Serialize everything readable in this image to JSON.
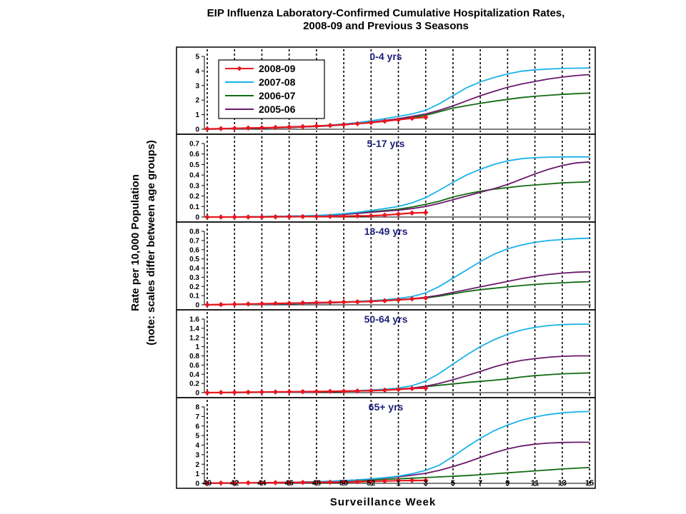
{
  "chart_data": {
    "type": "line",
    "title": "EIP Influenza Laboratory-Confirmed Cumulative Hospitalization Rates,",
    "subtitle": "2008-09 and Previous 3 Seasons",
    "xlabel": "Surveillance Week",
    "ylabel": "Rate per 10,000 Population",
    "ylabel_note": "(note: scales differ between age groups)",
    "x_tick_labels": [
      "40",
      "42",
      "44",
      "46",
      "48",
      "50",
      "52",
      "1",
      "3",
      "5",
      "7",
      "9",
      "11",
      "13",
      "15"
    ],
    "weeks": [
      "40",
      "41",
      "42",
      "43",
      "44",
      "45",
      "46",
      "47",
      "48",
      "49",
      "50",
      "51",
      "52",
      "1",
      "2",
      "3",
      "4",
      "5",
      "6",
      "7",
      "8",
      "9",
      "10",
      "11",
      "12",
      "13",
      "14",
      "15",
      "16"
    ],
    "legend": {
      "entries": [
        "2008-09",
        "2007-08",
        "2006-07",
        "2005-06"
      ],
      "placement": "top-left of first panel"
    },
    "series_colors": {
      "2008-09": "#e8171f",
      "2007-08": "#1ab2e8",
      "2006-07": "#126b12",
      "2005-06": "#6b1a6b"
    },
    "grid": "dotted vertical lines at every other week",
    "panels": [
      {
        "name": "0-4 yrs",
        "ylim": [
          0,
          5
        ],
        "yticks": [
          "0",
          "1",
          "2",
          "3",
          "4",
          "5"
        ],
        "series": [
          {
            "name": "2008-09",
            "values": [
              0.02,
              0.04,
              0.06,
              0.08,
              0.1,
              0.12,
              0.15,
              0.18,
              0.22,
              0.26,
              0.32,
              0.38,
              0.45,
              0.55,
              0.65,
              0.75,
              0.82
            ]
          },
          {
            "name": "2007-08",
            "values": [
              0.0,
              0.02,
              0.04,
              0.06,
              0.08,
              0.1,
              0.13,
              0.17,
              0.22,
              0.28,
              0.36,
              0.45,
              0.58,
              0.72,
              0.88,
              1.05,
              1.3,
              1.75,
              2.3,
              2.85,
              3.25,
              3.55,
              3.8,
              3.98,
              4.08,
              4.13,
              4.17,
              4.19,
              4.2
            ]
          },
          {
            "name": "2006-07",
            "values": [
              0.0,
              0.02,
              0.04,
              0.06,
              0.08,
              0.1,
              0.12,
              0.15,
              0.19,
              0.24,
              0.3,
              0.38,
              0.48,
              0.58,
              0.68,
              0.8,
              0.95,
              1.2,
              1.45,
              1.62,
              1.78,
              1.92,
              2.05,
              2.17,
              2.26,
              2.33,
              2.39,
              2.44,
              2.48
            ]
          },
          {
            "name": "2005-06",
            "values": [
              0.0,
              0.02,
              0.04,
              0.06,
              0.08,
              0.1,
              0.12,
              0.15,
              0.19,
              0.24,
              0.3,
              0.38,
              0.48,
              0.6,
              0.72,
              0.88,
              1.05,
              1.3,
              1.6,
              1.95,
              2.3,
              2.6,
              2.88,
              3.1,
              3.28,
              3.45,
              3.58,
              3.68,
              3.75
            ]
          }
        ]
      },
      {
        "name": "5-17 yrs",
        "ylim": [
          0,
          0.7
        ],
        "yticks": [
          "0",
          "0.1",
          "0.2",
          "0.3",
          "0.4",
          "0.5",
          "0.6",
          "0.7"
        ],
        "series": [
          {
            "name": "2008-09",
            "values": [
              0.0,
              0.0,
              0.0,
              0.0,
              0.0,
              0.002,
              0.003,
              0.004,
              0.005,
              0.006,
              0.008,
              0.01,
              0.012,
              0.018,
              0.028,
              0.038,
              0.042
            ]
          },
          {
            "name": "2007-08",
            "values": [
              0.0,
              0.0,
              0.0,
              0.002,
              0.004,
              0.006,
              0.008,
              0.011,
              0.015,
              0.022,
              0.032,
              0.045,
              0.062,
              0.08,
              0.1,
              0.135,
              0.185,
              0.255,
              0.33,
              0.4,
              0.455,
              0.5,
              0.535,
              0.555,
              0.565,
              0.57,
              0.572,
              0.572,
              0.572
            ]
          },
          {
            "name": "2006-07",
            "values": [
              0.0,
              0.0,
              0.0,
              0.002,
              0.004,
              0.006,
              0.008,
              0.01,
              0.013,
              0.018,
              0.025,
              0.035,
              0.05,
              0.062,
              0.075,
              0.095,
              0.12,
              0.15,
              0.19,
              0.22,
              0.245,
              0.265,
              0.28,
              0.295,
              0.305,
              0.315,
              0.325,
              0.33,
              0.335
            ]
          },
          {
            "name": "2005-06",
            "values": [
              0.0,
              0.0,
              0.0,
              0.002,
              0.004,
              0.006,
              0.008,
              0.01,
              0.013,
              0.018,
              0.025,
              0.035,
              0.045,
              0.055,
              0.065,
              0.08,
              0.1,
              0.13,
              0.165,
              0.2,
              0.235,
              0.27,
              0.31,
              0.36,
              0.41,
              0.455,
              0.49,
              0.515,
              0.525
            ]
          }
        ]
      },
      {
        "name": "18-49 yrs",
        "ylim": [
          0,
          0.8
        ],
        "yticks": [
          "0",
          "0.1",
          "0.2",
          "0.3",
          "0.4",
          "0.5",
          "0.6",
          "0.7",
          "0.8"
        ],
        "series": [
          {
            "name": "2008-09",
            "values": [
              0.0,
              0.003,
              0.006,
              0.009,
              0.012,
              0.015,
              0.018,
              0.021,
              0.024,
              0.027,
              0.03,
              0.033,
              0.038,
              0.045,
              0.055,
              0.065,
              0.075
            ]
          },
          {
            "name": "2007-08",
            "values": [
              0.0,
              0.002,
              0.004,
              0.006,
              0.008,
              0.01,
              0.013,
              0.016,
              0.02,
              0.025,
              0.031,
              0.038,
              0.046,
              0.055,
              0.07,
              0.09,
              0.13,
              0.2,
              0.29,
              0.38,
              0.47,
              0.55,
              0.61,
              0.65,
              0.68,
              0.7,
              0.71,
              0.72,
              0.725
            ]
          },
          {
            "name": "2006-07",
            "values": [
              0.0,
              0.002,
              0.004,
              0.006,
              0.008,
              0.01,
              0.012,
              0.015,
              0.018,
              0.022,
              0.027,
              0.032,
              0.038,
              0.044,
              0.052,
              0.062,
              0.075,
              0.095,
              0.12,
              0.145,
              0.165,
              0.18,
              0.195,
              0.21,
              0.222,
              0.232,
              0.24,
              0.247,
              0.252
            ]
          },
          {
            "name": "2005-06",
            "values": [
              0.0,
              0.002,
              0.004,
              0.006,
              0.008,
              0.01,
              0.012,
              0.015,
              0.018,
              0.022,
              0.027,
              0.032,
              0.038,
              0.045,
              0.055,
              0.067,
              0.082,
              0.105,
              0.135,
              0.165,
              0.195,
              0.225,
              0.255,
              0.285,
              0.31,
              0.33,
              0.345,
              0.355,
              0.36
            ]
          }
        ]
      },
      {
        "name": "50-64 yrs",
        "ylim": [
          0,
          1.6
        ],
        "yticks": [
          "0",
          "0.2",
          "0.4",
          "0.6",
          "0.8",
          "1",
          "1.2",
          "1.4",
          "1.6"
        ],
        "series": [
          {
            "name": "2008-09",
            "values": [
              0.0,
              0.003,
              0.006,
              0.009,
              0.012,
              0.015,
              0.018,
              0.021,
              0.024,
              0.028,
              0.032,
              0.037,
              0.042,
              0.055,
              0.07,
              0.09,
              0.1
            ]
          },
          {
            "name": "2007-08",
            "values": [
              0.0,
              0.0,
              0.002,
              0.004,
              0.006,
              0.008,
              0.01,
              0.014,
              0.019,
              0.026,
              0.035,
              0.045,
              0.058,
              0.075,
              0.1,
              0.15,
              0.25,
              0.42,
              0.62,
              0.82,
              1.0,
              1.15,
              1.27,
              1.36,
              1.42,
              1.46,
              1.48,
              1.49,
              1.49
            ]
          },
          {
            "name": "2006-07",
            "values": [
              0.0,
              0.0,
              0.002,
              0.004,
              0.006,
              0.008,
              0.01,
              0.013,
              0.017,
              0.022,
              0.028,
              0.036,
              0.045,
              0.058,
              0.075,
              0.1,
              0.13,
              0.16,
              0.19,
              0.22,
              0.245,
              0.27,
              0.3,
              0.34,
              0.37,
              0.39,
              0.41,
              0.42,
              0.43
            ]
          },
          {
            "name": "2005-06",
            "values": [
              0.0,
              0.0,
              0.002,
              0.004,
              0.006,
              0.008,
              0.01,
              0.013,
              0.017,
              0.022,
              0.028,
              0.036,
              0.045,
              0.058,
              0.075,
              0.1,
              0.14,
              0.2,
              0.28,
              0.37,
              0.46,
              0.56,
              0.64,
              0.7,
              0.74,
              0.77,
              0.79,
              0.8,
              0.8
            ]
          }
        ]
      },
      {
        "name": "65+ yrs",
        "ylim": [
          0,
          8
        ],
        "yticks": [
          "0",
          "1",
          "2",
          "3",
          "4",
          "5",
          "6",
          "7",
          "8"
        ],
        "series": [
          {
            "name": "2008-09",
            "values": [
              0.02,
              0.03,
              0.04,
              0.05,
              0.06,
              0.07,
              0.08,
              0.09,
              0.1,
              0.11,
              0.13,
              0.16,
              0.2,
              0.24,
              0.28,
              0.3,
              0.3
            ]
          },
          {
            "name": "2007-08",
            "values": [
              0.0,
              0.01,
              0.02,
              0.04,
              0.06,
              0.08,
              0.1,
              0.13,
              0.17,
              0.22,
              0.28,
              0.36,
              0.46,
              0.58,
              0.75,
              1.0,
              1.35,
              1.9,
              2.8,
              3.8,
              4.7,
              5.5,
              6.1,
              6.6,
              6.95,
              7.2,
              7.38,
              7.48,
              7.52
            ]
          },
          {
            "name": "2006-07",
            "values": [
              0.0,
              0.01,
              0.02,
              0.04,
              0.06,
              0.08,
              0.1,
              0.12,
              0.15,
              0.19,
              0.24,
              0.3,
              0.36,
              0.42,
              0.48,
              0.54,
              0.6,
              0.67,
              0.74,
              0.81,
              0.9,
              1.0,
              1.1,
              1.2,
              1.3,
              1.4,
              1.5,
              1.58,
              1.65
            ]
          },
          {
            "name": "2005-06",
            "values": [
              0.0,
              0.01,
              0.02,
              0.04,
              0.06,
              0.08,
              0.1,
              0.13,
              0.17,
              0.22,
              0.28,
              0.35,
              0.44,
              0.55,
              0.68,
              0.85,
              1.05,
              1.35,
              1.75,
              2.2,
              2.7,
              3.2,
              3.6,
              3.9,
              4.1,
              4.22,
              4.28,
              4.3,
              4.3
            ]
          }
        ]
      }
    ]
  }
}
